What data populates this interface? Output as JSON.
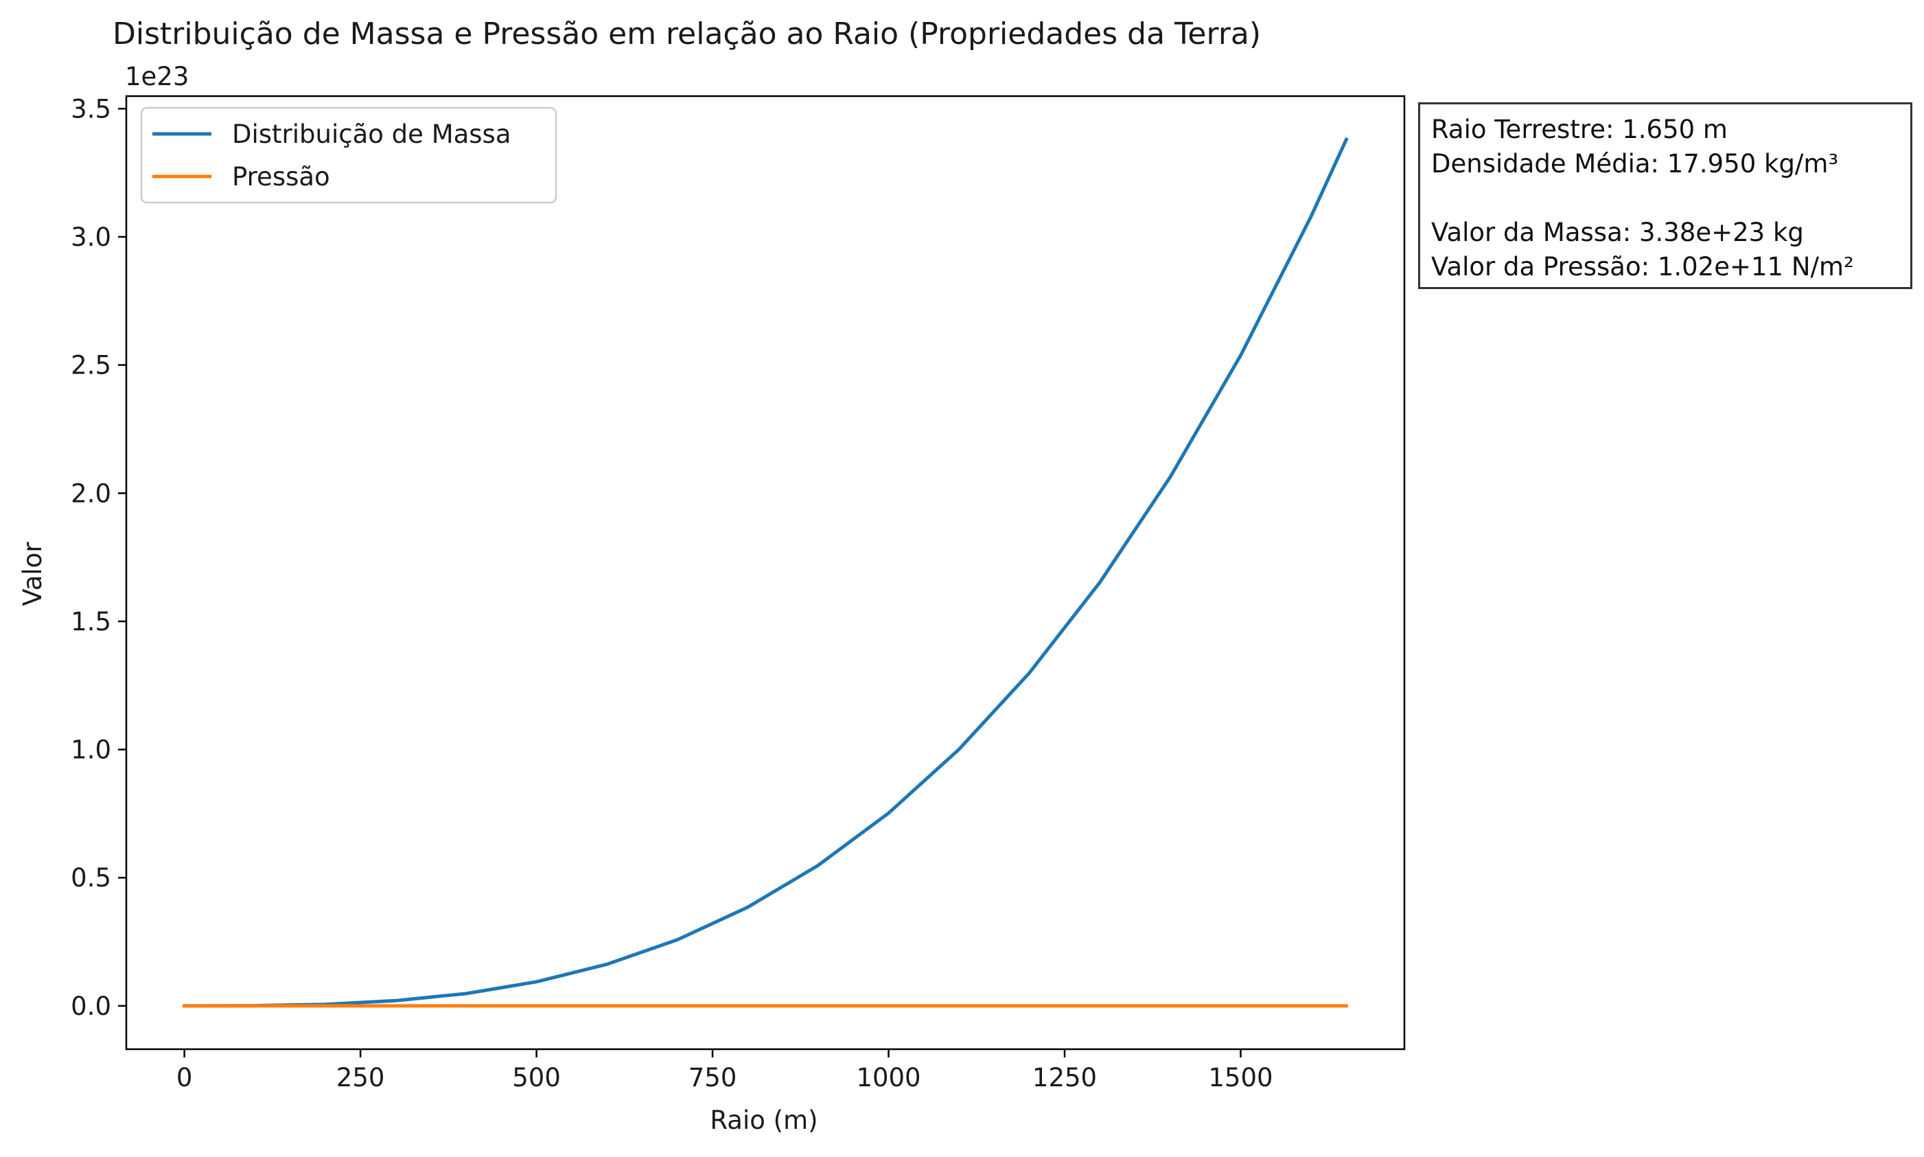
{
  "chart_data": {
    "type": "line",
    "title": "Distribuição de Massa e Pressão em relação ao Raio (Propriedades da Terra)",
    "xlabel": "Raio (m)",
    "ylabel": "Valor",
    "y_offset_label": "1e23",
    "xlim": [
      -82.5,
      1732.5
    ],
    "ylim": [
      -0.169,
      3.549
    ],
    "x_ticks": [
      0,
      250,
      500,
      750,
      1000,
      1250,
      1500
    ],
    "x_tick_labels": [
      "0",
      "250",
      "500",
      "750",
      "1000",
      "1250",
      "1500"
    ],
    "y_ticks": [
      0.0,
      0.5,
      1.0,
      1.5,
      2.0,
      2.5,
      3.0,
      3.5
    ],
    "y_tick_labels": [
      "0.0",
      "0.5",
      "1.0",
      "1.5",
      "2.0",
      "2.5",
      "3.0",
      "3.5"
    ],
    "grid": false,
    "legend_position": "top-left",
    "series": [
      {
        "name": "Distribuição de Massa",
        "color": "#1f77b4",
        "x": [
          0,
          100,
          200,
          300,
          400,
          500,
          600,
          700,
          800,
          900,
          1000,
          1100,
          1200,
          1300,
          1400,
          1500,
          1600,
          1650
        ],
        "y": [
          0.0,
          0.0008,
          0.006,
          0.0203,
          0.0481,
          0.094,
          0.1624,
          0.2579,
          0.385,
          0.5481,
          0.7519,
          1.0008,
          1.2993,
          1.652,
          2.0633,
          2.5377,
          3.0799,
          3.38
        ]
      },
      {
        "name": "Pressão",
        "color": "#ff7f0e",
        "x": [
          0,
          1650
        ],
        "y": [
          0.0,
          0.0
        ]
      }
    ]
  },
  "info_box": {
    "lines": [
      "Raio Terrestre: 1.650 m",
      "Densidade Média: 17.950 kg/m³",
      "Valor da Massa: 3.38e+23 kg",
      "Valor da Pressão: 1.02e+11 N/m²"
    ]
  }
}
